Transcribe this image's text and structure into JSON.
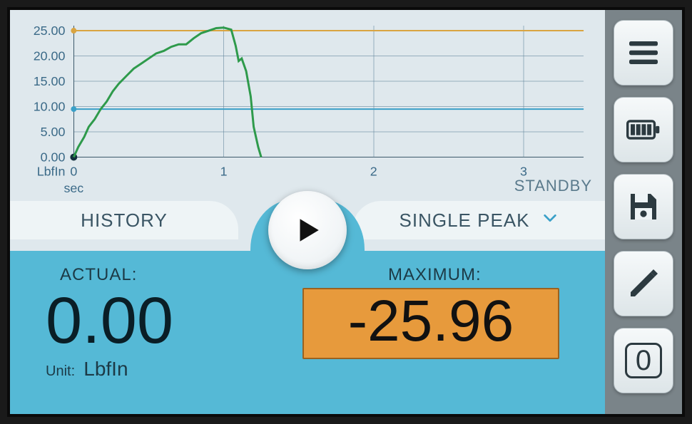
{
  "chart": {
    "type": "line",
    "y_unit_label": "LbfIn",
    "x_unit_label": "sec",
    "y_ticks": [
      0.0,
      5.0,
      10.0,
      15.0,
      20.0,
      25.0
    ],
    "y_tick_labels": [
      "0.00",
      "5.00",
      "10.00",
      "15.00",
      "20.00",
      "25.00"
    ],
    "x_ticks": [
      0,
      1,
      2,
      3
    ],
    "x_tick_labels": [
      "0",
      "1",
      "2",
      "3"
    ],
    "ylim": [
      0,
      26
    ],
    "xlim": [
      0,
      3.4
    ],
    "grid_color": "#5c7f96",
    "background_color": "#dfe8ed",
    "line_color": "#2e9a4b",
    "line_width": 3,
    "marker_1": {
      "y": 25.0,
      "color": "#d9a441"
    },
    "marker_2": {
      "y": 9.5,
      "color": "#3aa0c8"
    },
    "data": [
      [
        0.0,
        0.0
      ],
      [
        0.03,
        2.0
      ],
      [
        0.07,
        4.0
      ],
      [
        0.1,
        6.0
      ],
      [
        0.14,
        7.5
      ],
      [
        0.18,
        9.5
      ],
      [
        0.22,
        11.0
      ],
      [
        0.26,
        13.0
      ],
      [
        0.3,
        14.5
      ],
      [
        0.35,
        16.0
      ],
      [
        0.4,
        17.5
      ],
      [
        0.45,
        18.5
      ],
      [
        0.5,
        19.5
      ],
      [
        0.55,
        20.5
      ],
      [
        0.6,
        21.0
      ],
      [
        0.65,
        21.8
      ],
      [
        0.7,
        22.3
      ],
      [
        0.75,
        22.3
      ],
      [
        0.8,
        23.5
      ],
      [
        0.85,
        24.5
      ],
      [
        0.9,
        25.0
      ],
      [
        0.95,
        25.5
      ],
      [
        1.0,
        25.6
      ],
      [
        1.05,
        25.2
      ],
      [
        1.08,
        22.0
      ],
      [
        1.1,
        19.0
      ],
      [
        1.12,
        19.5
      ],
      [
        1.15,
        17.0
      ],
      [
        1.18,
        12.0
      ],
      [
        1.2,
        6.0
      ],
      [
        1.23,
        2.0
      ],
      [
        1.25,
        0.0
      ]
    ]
  },
  "status_text": "STANDBY",
  "history_label": "HISTORY",
  "mode": {
    "selected": "SINGLE PEAK"
  },
  "actual": {
    "label": "ACTUAL:",
    "value": "0.00",
    "unit_prefix": "Unit:",
    "unit": "LbfIn"
  },
  "maximum": {
    "label": "MAXIMUM:",
    "value": "-25.96",
    "box_bg": "#e79a3c",
    "box_border": "#9a6220"
  },
  "sidebar": {
    "zero_label": "0"
  }
}
